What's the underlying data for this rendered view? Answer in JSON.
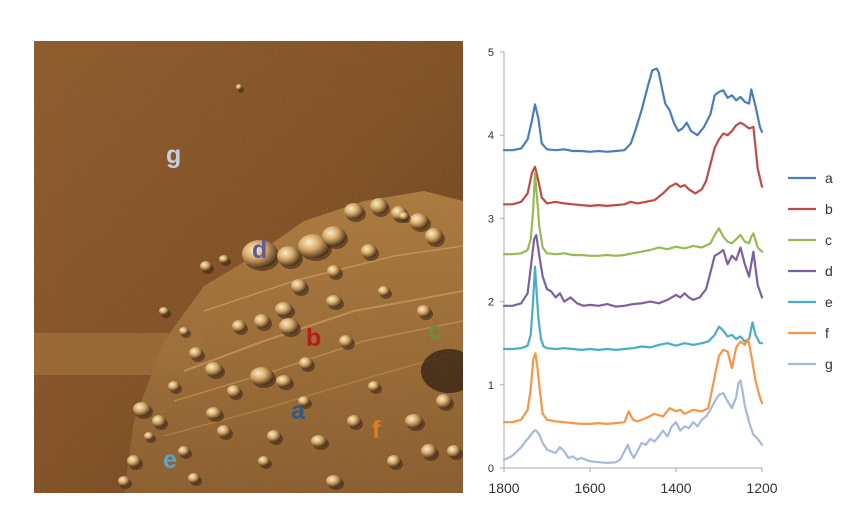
{
  "afm_image": {
    "labels": [
      {
        "text": "g",
        "color": "#c5cfe0"
      },
      {
        "text": "d",
        "color": "#5f5a9e"
      },
      {
        "text": "b",
        "color": "#b51c1c"
      },
      {
        "text": "c",
        "color": "#6d8e3b"
      },
      {
        "text": "a",
        "color": "#2f5a84"
      },
      {
        "text": "f",
        "color": "#e07a27"
      },
      {
        "text": "e",
        "color": "#5aa5c9"
      }
    ]
  },
  "chart_data": {
    "type": "line",
    "title": "",
    "xlabel": "",
    "ylabel": "",
    "xlim": [
      1800,
      1200
    ],
    "ylim": [
      0,
      5
    ],
    "x_reversed": true,
    "xticks": [
      "1800",
      "1600",
      "1400",
      "1200"
    ],
    "yticks": [
      "0",
      "1",
      "2",
      "3",
      "4",
      "5"
    ],
    "grid": false,
    "legend_position": "right",
    "series": [
      {
        "name": "a",
        "color": "#4a7ebb",
        "x": [
          1800,
          1780,
          1760,
          1745,
          1735,
          1728,
          1720,
          1712,
          1700,
          1680,
          1660,
          1640,
          1620,
          1600,
          1580,
          1560,
          1540,
          1520,
          1505,
          1495,
          1480,
          1465,
          1455,
          1445,
          1440,
          1432,
          1425,
          1415,
          1405,
          1395,
          1385,
          1375,
          1365,
          1350,
          1335,
          1320,
          1310,
          1300,
          1290,
          1280,
          1270,
          1260,
          1250,
          1240,
          1230,
          1225,
          1215,
          1205,
          1200
        ],
        "y": [
          3.82,
          3.82,
          3.84,
          3.95,
          4.18,
          4.37,
          4.2,
          3.9,
          3.83,
          3.82,
          3.83,
          3.81,
          3.81,
          3.8,
          3.81,
          3.8,
          3.81,
          3.82,
          3.9,
          4.05,
          4.3,
          4.6,
          4.78,
          4.8,
          4.75,
          4.55,
          4.38,
          4.3,
          4.15,
          4.05,
          4.08,
          4.15,
          4.05,
          4.0,
          4.1,
          4.25,
          4.48,
          4.52,
          4.54,
          4.45,
          4.48,
          4.42,
          4.46,
          4.4,
          4.38,
          4.55,
          4.35,
          4.1,
          4.04
        ]
      },
      {
        "name": "b",
        "color": "#be4b48",
        "x": [
          1800,
          1780,
          1760,
          1745,
          1735,
          1728,
          1720,
          1712,
          1700,
          1680,
          1660,
          1640,
          1620,
          1600,
          1580,
          1560,
          1540,
          1520,
          1505,
          1490,
          1470,
          1450,
          1430,
          1415,
          1400,
          1390,
          1380,
          1370,
          1355,
          1340,
          1330,
          1320,
          1310,
          1300,
          1290,
          1280,
          1270,
          1260,
          1250,
          1240,
          1230,
          1220,
          1210,
          1200
        ],
        "y": [
          3.17,
          3.17,
          3.2,
          3.3,
          3.55,
          3.62,
          3.45,
          3.25,
          3.18,
          3.2,
          3.18,
          3.17,
          3.16,
          3.15,
          3.16,
          3.15,
          3.16,
          3.17,
          3.2,
          3.18,
          3.2,
          3.22,
          3.3,
          3.38,
          3.42,
          3.38,
          3.4,
          3.35,
          3.3,
          3.35,
          3.45,
          3.65,
          3.85,
          3.95,
          4.02,
          4.0,
          4.05,
          4.12,
          4.15,
          4.12,
          4.08,
          4.1,
          3.6,
          3.38
        ]
      },
      {
        "name": "c",
        "color": "#98b954",
        "x": [
          1800,
          1780,
          1760,
          1745,
          1738,
          1732,
          1728,
          1724,
          1718,
          1710,
          1700,
          1680,
          1660,
          1640,
          1620,
          1600,
          1580,
          1560,
          1540,
          1520,
          1500,
          1480,
          1460,
          1440,
          1420,
          1400,
          1380,
          1360,
          1340,
          1320,
          1310,
          1300,
          1290,
          1280,
          1270,
          1260,
          1250,
          1240,
          1230,
          1225,
          1220,
          1210,
          1200
        ],
        "y": [
          2.57,
          2.57,
          2.58,
          2.62,
          2.75,
          3.1,
          3.55,
          3.3,
          2.9,
          2.65,
          2.58,
          2.57,
          2.58,
          2.56,
          2.56,
          2.55,
          2.55,
          2.56,
          2.55,
          2.56,
          2.58,
          2.6,
          2.62,
          2.65,
          2.63,
          2.66,
          2.64,
          2.67,
          2.65,
          2.7,
          2.8,
          2.88,
          2.78,
          2.72,
          2.7,
          2.75,
          2.8,
          2.72,
          2.7,
          2.78,
          2.82,
          2.65,
          2.6
        ]
      },
      {
        "name": "d",
        "color": "#7d60a0",
        "x": [
          1800,
          1780,
          1760,
          1745,
          1738,
          1730,
          1725,
          1718,
          1710,
          1700,
          1690,
          1680,
          1670,
          1660,
          1645,
          1630,
          1615,
          1600,
          1580,
          1560,
          1540,
          1520,
          1500,
          1480,
          1460,
          1440,
          1420,
          1400,
          1390,
          1380,
          1370,
          1360,
          1345,
          1330,
          1320,
          1310,
          1300,
          1290,
          1280,
          1270,
          1260,
          1250,
          1240,
          1230,
          1220,
          1210,
          1200
        ],
        "y": [
          1.95,
          1.95,
          1.98,
          2.1,
          2.4,
          2.75,
          2.8,
          2.55,
          2.3,
          2.15,
          2.12,
          2.05,
          2.1,
          2.0,
          2.05,
          1.98,
          1.95,
          1.96,
          1.95,
          1.97,
          1.94,
          1.95,
          1.97,
          1.98,
          2.0,
          1.98,
          2.02,
          2.08,
          2.05,
          2.1,
          2.05,
          2.02,
          2.05,
          2.15,
          2.35,
          2.55,
          2.58,
          2.62,
          2.45,
          2.55,
          2.5,
          2.65,
          2.45,
          2.3,
          2.6,
          2.2,
          2.05
        ]
      },
      {
        "name": "e",
        "color": "#4aacc5",
        "x": [
          1800,
          1780,
          1760,
          1745,
          1738,
          1733,
          1728,
          1724,
          1720,
          1714,
          1708,
          1700,
          1680,
          1660,
          1640,
          1620,
          1600,
          1580,
          1560,
          1540,
          1520,
          1500,
          1480,
          1460,
          1440,
          1420,
          1400,
          1380,
          1360,
          1340,
          1325,
          1310,
          1300,
          1290,
          1280,
          1270,
          1260,
          1250,
          1240,
          1230,
          1222,
          1215,
          1205,
          1200
        ],
        "y": [
          1.43,
          1.43,
          1.44,
          1.47,
          1.6,
          1.95,
          2.42,
          2.1,
          1.8,
          1.55,
          1.46,
          1.44,
          1.43,
          1.44,
          1.43,
          1.42,
          1.43,
          1.42,
          1.43,
          1.42,
          1.43,
          1.44,
          1.46,
          1.45,
          1.48,
          1.5,
          1.47,
          1.5,
          1.48,
          1.5,
          1.52,
          1.6,
          1.7,
          1.65,
          1.58,
          1.6,
          1.55,
          1.58,
          1.52,
          1.55,
          1.75,
          1.6,
          1.5,
          1.5
        ]
      },
      {
        "name": "f",
        "color": "#f79646",
        "x": [
          1800,
          1780,
          1760,
          1745,
          1738,
          1732,
          1727,
          1722,
          1716,
          1710,
          1700,
          1680,
          1660,
          1640,
          1620,
          1600,
          1580,
          1560,
          1540,
          1520,
          1510,
          1500,
          1490,
          1470,
          1450,
          1430,
          1415,
          1400,
          1390,
          1380,
          1360,
          1340,
          1325,
          1310,
          1300,
          1290,
          1280,
          1270,
          1260,
          1250,
          1240,
          1232,
          1225,
          1215,
          1205,
          1200
        ],
        "y": [
          0.55,
          0.55,
          0.58,
          0.7,
          0.95,
          1.3,
          1.38,
          1.2,
          0.9,
          0.65,
          0.58,
          0.56,
          0.55,
          0.54,
          0.53,
          0.53,
          0.54,
          0.53,
          0.54,
          0.55,
          0.68,
          0.58,
          0.56,
          0.6,
          0.65,
          0.62,
          0.72,
          0.68,
          0.7,
          0.65,
          0.7,
          0.68,
          0.72,
          1.1,
          1.35,
          1.42,
          1.4,
          1.2,
          1.45,
          1.52,
          1.48,
          1.55,
          1.35,
          1.05,
          0.85,
          0.78
        ]
      },
      {
        "name": "g",
        "color": "#a5b9dd",
        "x": [
          1800,
          1790,
          1780,
          1770,
          1760,
          1750,
          1740,
          1730,
          1725,
          1718,
          1710,
          1700,
          1690,
          1680,
          1670,
          1660,
          1650,
          1640,
          1630,
          1620,
          1600,
          1580,
          1560,
          1540,
          1530,
          1520,
          1512,
          1505,
          1498,
          1490,
          1480,
          1470,
          1460,
          1450,
          1440,
          1430,
          1420,
          1410,
          1400,
          1390,
          1380,
          1370,
          1360,
          1350,
          1340,
          1330,
          1320,
          1310,
          1300,
          1290,
          1280,
          1270,
          1260,
          1255,
          1250,
          1245,
          1240,
          1235,
          1230,
          1220,
          1210,
          1200
        ],
        "y": [
          0.1,
          0.12,
          0.15,
          0.2,
          0.25,
          0.32,
          0.38,
          0.45,
          0.45,
          0.4,
          0.3,
          0.22,
          0.2,
          0.18,
          0.25,
          0.2,
          0.12,
          0.14,
          0.1,
          0.12,
          0.08,
          0.07,
          0.06,
          0.07,
          0.1,
          0.2,
          0.28,
          0.18,
          0.12,
          0.2,
          0.3,
          0.28,
          0.35,
          0.32,
          0.38,
          0.45,
          0.38,
          0.5,
          0.55,
          0.45,
          0.5,
          0.48,
          0.55,
          0.5,
          0.58,
          0.62,
          0.7,
          0.8,
          0.88,
          0.9,
          0.8,
          0.72,
          0.85,
          1.02,
          1.05,
          0.92,
          0.75,
          0.65,
          0.55,
          0.4,
          0.35,
          0.28
        ]
      }
    ]
  }
}
